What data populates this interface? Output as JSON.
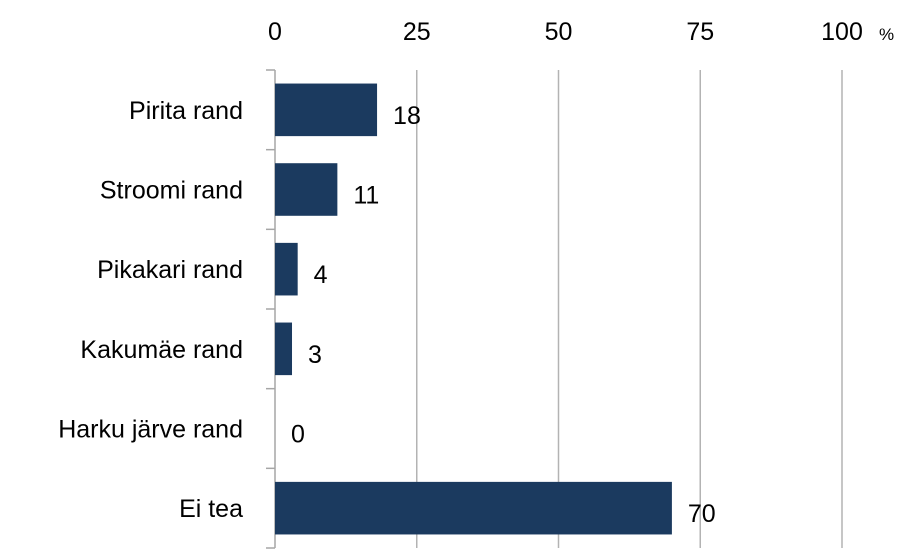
{
  "chart_data": {
    "type": "bar",
    "orientation": "horizontal",
    "title": "",
    "xlabel": "",
    "ylabel": "",
    "unit": "%",
    "categories": [
      "Pirita rand",
      "Stroomi rand",
      "Pikakari rand",
      "Kakumäe rand",
      "Harku järve rand",
      "Ei tea"
    ],
    "values": [
      18,
      11,
      4,
      3,
      0,
      70
    ],
    "data_labels": [
      "18",
      "11",
      "4",
      "3",
      "0",
      "70"
    ],
    "xlim": [
      0,
      100
    ],
    "ticks": [
      0,
      25,
      50,
      75,
      100
    ],
    "tick_labels": [
      "0",
      "25",
      "50",
      "75",
      "100"
    ],
    "x_axis_position": "top",
    "grid": true,
    "legend": "none",
    "colors": {
      "bar": "#1b3a5f",
      "grid": "#b3b3b3",
      "axis": "#a6a6a6",
      "text": "#000000"
    }
  }
}
